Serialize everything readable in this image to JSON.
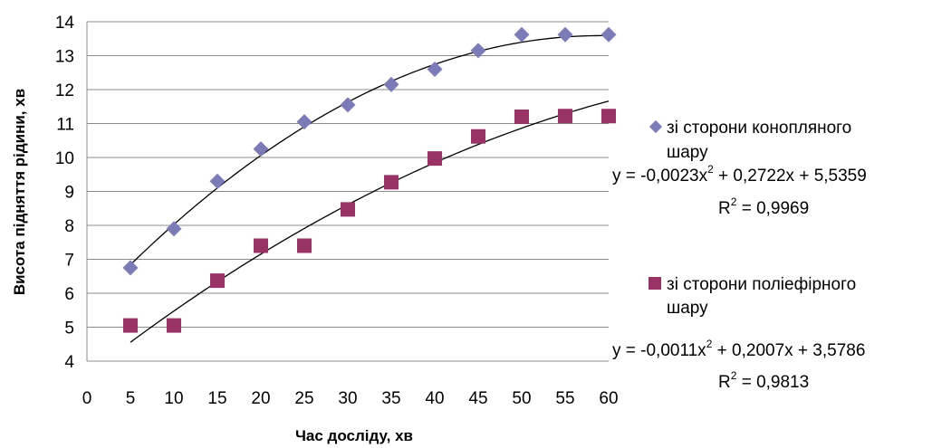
{
  "chart_data": {
    "type": "scatter",
    "title": "",
    "xlabel": "Час досліду, хв",
    "ylabel": "Висота підняття рідини, хв",
    "xlim": [
      0,
      60
    ],
    "ylim": [
      4,
      14
    ],
    "x_ticks": [
      "0",
      "5",
      "10",
      "15",
      "20",
      "25",
      "30",
      "35",
      "40",
      "45",
      "50",
      "55",
      "60"
    ],
    "y_ticks": [
      "4",
      "5",
      "6",
      "7",
      "8",
      "9",
      "10",
      "11",
      "12",
      "13",
      "14"
    ],
    "grid": "horizontal",
    "legend_position": "right",
    "series": [
      {
        "name": "зі сторони конопляного шару",
        "legend_line1": "зі сторони конопляного",
        "legend_line2": "шару",
        "marker": "diamond",
        "color": "#7b7bb8",
        "x": [
          5,
          10,
          15,
          20,
          25,
          30,
          35,
          40,
          45,
          50,
          55,
          60
        ],
        "y": [
          6.75,
          7.9,
          9.3,
          10.25,
          11.05,
          11.55,
          12.15,
          12.6,
          13.15,
          13.62,
          13.62,
          13.62
        ],
        "trendline": {
          "type": "polynomial",
          "coefficients": [
            -0.0023,
            0.2722,
            5.5359
          ],
          "equation": "y = -0,0023x",
          "equation_tail": " + 0,2722x + 5,5359",
          "r2_label": "R",
          "r2_value": " = 0,9969"
        }
      },
      {
        "name": "зі сторони поліефірного шару",
        "legend_line1": "зі сторони поліефірного",
        "legend_line2": "шару",
        "marker": "square",
        "color": "#993366",
        "x": [
          5,
          10,
          15,
          20,
          25,
          30,
          35,
          40,
          45,
          50,
          55,
          60
        ],
        "y": [
          5.05,
          5.05,
          6.37,
          7.4,
          7.4,
          8.47,
          9.27,
          9.97,
          10.62,
          11.2,
          11.22,
          11.22
        ],
        "trendline": {
          "type": "polynomial",
          "coefficients": [
            -0.0011,
            0.2007,
            3.5786
          ],
          "equation": "y = -0,0011x",
          "equation_tail": " + 0,2007x + 3,5786",
          "r2_label": "R",
          "r2_value": " = 0,9813"
        }
      }
    ],
    "superscript": "2"
  },
  "colors": {
    "grid": "#8c8c8c",
    "trendline": "#000000"
  }
}
